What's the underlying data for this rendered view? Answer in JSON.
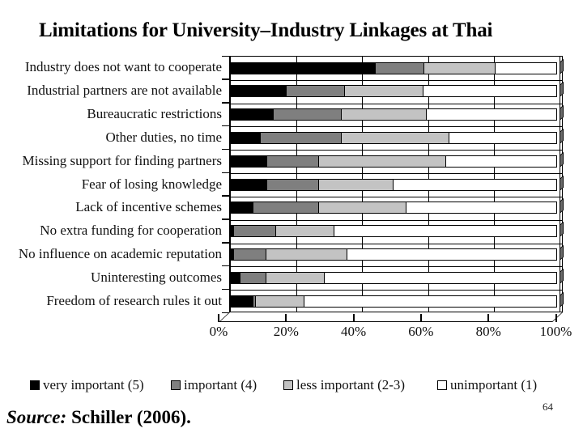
{
  "slide": {
    "title": "Limitations for University–Industry Linkages at Thai",
    "source_prefix": "Source:",
    "source_citation": "Schiller (2006).",
    "page_number": "64"
  },
  "chart_data": {
    "type": "bar",
    "orientation": "horizontal",
    "stacked": true,
    "title": "",
    "xlabel": "",
    "ylabel": "",
    "xlim": [
      0,
      100
    ],
    "grid": true,
    "legend_position": "bottom",
    "categories": [
      "Industry does not want to cooperate",
      "Industrial partners are not available",
      "Bureaucratic restrictions",
      "Other duties, no time",
      "Missing support for finding partners",
      "Fear of losing knowledge",
      "Lack of incentive schemes",
      "No extra funding for cooperation",
      "No influence on academic reputation",
      "Uninteresting outcomes",
      "Freedom of research rules it out"
    ],
    "series": [
      {
        "name": "very important (5)",
        "color": "#000000",
        "values": [
          44,
          17,
          13,
          9,
          11,
          11,
          7,
          1,
          1,
          3,
          7
        ]
      },
      {
        "name": "important (4)",
        "color": "#7f7f7f",
        "values": [
          15,
          18,
          21,
          25,
          16,
          16,
          20,
          13,
          10,
          8,
          1
        ]
      },
      {
        "name": "less important (2-3)",
        "color": "#c3c3c3",
        "values": [
          22,
          24,
          26,
          33,
          39,
          23,
          27,
          18,
          25,
          18,
          15
        ]
      },
      {
        "name": "unimportant (1)",
        "color": "#ffffff",
        "values": [
          19,
          41,
          40,
          33,
          34,
          50,
          46,
          68,
          64,
          71,
          77
        ]
      }
    ],
    "x_axis": {
      "ticks": [
        "0%",
        "20%",
        "40%",
        "60%",
        "80%",
        "100%"
      ]
    }
  }
}
